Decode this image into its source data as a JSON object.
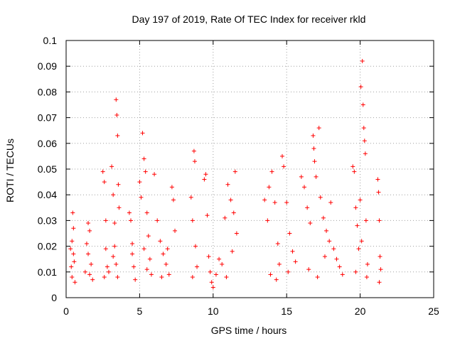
{
  "chart_data": {
    "type": "scatter",
    "title": "Day 197 of 2019, Rate Of TEC Index for receiver rkld",
    "xlabel": "GPS time / hours",
    "ylabel": "ROTI / TECUs",
    "xlim": [
      0,
      25
    ],
    "ylim": [
      0,
      0.1
    ],
    "x_ticks": [
      0,
      5,
      10,
      15,
      20,
      25
    ],
    "x_tick_labels": [
      "0",
      "5",
      "10",
      "15",
      "20",
      "25"
    ],
    "y_ticks": [
      0,
      0.01,
      0.02,
      0.03,
      0.04,
      0.05,
      0.06,
      0.07,
      0.08,
      0.09,
      0.1
    ],
    "y_tick_labels": [
      "0",
      "0.01",
      "0.02",
      "0.03",
      "0.04",
      "0.05",
      "0.06",
      "0.07",
      "0.08",
      "0.09",
      "0.1"
    ],
    "grid": true,
    "marker": "+",
    "color": "#ff0000",
    "series": [
      {
        "name": "ROTI",
        "points": [
          [
            0.3,
            0.019
          ],
          [
            0.35,
            0.012
          ],
          [
            0.4,
            0.008
          ],
          [
            0.45,
            0.033
          ],
          [
            0.5,
            0.027
          ],
          [
            0.55,
            0.014
          ],
          [
            0.6,
            0.006
          ],
          [
            0.4,
            0.022
          ],
          [
            0.5,
            0.017
          ],
          [
            1.3,
            0.01
          ],
          [
            1.4,
            0.021
          ],
          [
            1.5,
            0.029
          ],
          [
            1.6,
            0.026
          ],
          [
            1.7,
            0.013
          ],
          [
            1.8,
            0.007
          ],
          [
            1.5,
            0.017
          ],
          [
            1.6,
            0.009
          ],
          [
            2.5,
            0.049
          ],
          [
            2.6,
            0.045
          ],
          [
            2.7,
            0.03
          ],
          [
            2.8,
            0.012
          ],
          [
            2.6,
            0.008
          ],
          [
            2.7,
            0.019
          ],
          [
            2.9,
            0.01
          ],
          [
            3.1,
            0.051
          ],
          [
            3.2,
            0.04
          ],
          [
            3.3,
            0.029
          ],
          [
            3.4,
            0.077
          ],
          [
            3.45,
            0.071
          ],
          [
            3.5,
            0.063
          ],
          [
            3.55,
            0.044
          ],
          [
            3.6,
            0.035
          ],
          [
            3.3,
            0.02
          ],
          [
            3.4,
            0.013
          ],
          [
            3.5,
            0.008
          ],
          [
            3.2,
            0.016
          ],
          [
            4.3,
            0.033
          ],
          [
            4.4,
            0.03
          ],
          [
            4.5,
            0.021
          ],
          [
            4.6,
            0.012
          ],
          [
            4.7,
            0.007
          ],
          [
            4.5,
            0.017
          ],
          [
            5.0,
            0.045
          ],
          [
            5.1,
            0.039
          ],
          [
            5.2,
            0.064
          ],
          [
            5.3,
            0.054
          ],
          [
            5.4,
            0.049
          ],
          [
            5.5,
            0.033
          ],
          [
            5.6,
            0.024
          ],
          [
            5.7,
            0.015
          ],
          [
            5.8,
            0.009
          ],
          [
            5.5,
            0.011
          ],
          [
            5.3,
            0.019
          ],
          [
            6.0,
            0.048
          ],
          [
            6.2,
            0.03
          ],
          [
            6.4,
            0.022
          ],
          [
            6.6,
            0.017
          ],
          [
            6.8,
            0.013
          ],
          [
            7.0,
            0.009
          ],
          [
            7.2,
            0.043
          ],
          [
            7.3,
            0.038
          ],
          [
            7.4,
            0.026
          ],
          [
            6.5,
            0.008
          ],
          [
            6.9,
            0.019
          ],
          [
            8.5,
            0.039
          ],
          [
            8.6,
            0.03
          ],
          [
            8.7,
            0.057
          ],
          [
            8.75,
            0.053
          ],
          [
            8.8,
            0.02
          ],
          [
            8.9,
            0.012
          ],
          [
            8.6,
            0.008
          ],
          [
            9.4,
            0.046
          ],
          [
            9.5,
            0.048
          ],
          [
            9.6,
            0.032
          ],
          [
            9.7,
            0.016
          ],
          [
            9.8,
            0.01
          ],
          [
            9.9,
            0.006
          ],
          [
            10.0,
            0.004
          ],
          [
            10.2,
            0.009
          ],
          [
            10.4,
            0.015
          ],
          [
            10.6,
            0.013
          ],
          [
            10.8,
            0.031
          ],
          [
            11.0,
            0.044
          ],
          [
            11.2,
            0.038
          ],
          [
            11.5,
            0.049
          ],
          [
            11.4,
            0.033
          ],
          [
            11.6,
            0.025
          ],
          [
            11.3,
            0.018
          ],
          [
            10.9,
            0.008
          ],
          [
            13.5,
            0.038
          ],
          [
            13.7,
            0.03
          ],
          [
            13.8,
            0.043
          ],
          [
            14.0,
            0.049
          ],
          [
            14.2,
            0.037
          ],
          [
            14.4,
            0.021
          ],
          [
            14.5,
            0.013
          ],
          [
            14.7,
            0.055
          ],
          [
            14.8,
            0.051
          ],
          [
            15.0,
            0.037
          ],
          [
            15.2,
            0.025
          ],
          [
            15.4,
            0.018
          ],
          [
            15.6,
            0.014
          ],
          [
            13.9,
            0.009
          ],
          [
            14.3,
            0.007
          ],
          [
            15.1,
            0.01
          ],
          [
            16.0,
            0.047
          ],
          [
            16.2,
            0.043
          ],
          [
            16.4,
            0.035
          ],
          [
            16.6,
            0.029
          ],
          [
            16.8,
            0.063
          ],
          [
            16.85,
            0.058
          ],
          [
            16.9,
            0.053
          ],
          [
            17.0,
            0.047
          ],
          [
            17.2,
            0.066
          ],
          [
            17.3,
            0.039
          ],
          [
            17.5,
            0.031
          ],
          [
            17.7,
            0.026
          ],
          [
            17.9,
            0.022
          ],
          [
            18.0,
            0.037
          ],
          [
            18.2,
            0.019
          ],
          [
            18.4,
            0.015
          ],
          [
            18.6,
            0.012
          ],
          [
            18.8,
            0.009
          ],
          [
            16.5,
            0.011
          ],
          [
            17.1,
            0.008
          ],
          [
            17.6,
            0.016
          ],
          [
            19.5,
            0.051
          ],
          [
            19.6,
            0.049
          ],
          [
            19.7,
            0.035
          ],
          [
            19.8,
            0.028
          ],
          [
            19.9,
            0.019
          ],
          [
            20.0,
            0.038
          ],
          [
            20.05,
            0.082
          ],
          [
            20.15,
            0.092
          ],
          [
            20.2,
            0.075
          ],
          [
            20.25,
            0.066
          ],
          [
            20.3,
            0.061
          ],
          [
            20.35,
            0.056
          ],
          [
            20.4,
            0.03
          ],
          [
            20.5,
            0.013
          ],
          [
            20.45,
            0.008
          ],
          [
            19.7,
            0.01
          ],
          [
            20.1,
            0.022
          ],
          [
            21.2,
            0.046
          ],
          [
            21.25,
            0.041
          ],
          [
            21.3,
            0.03
          ],
          [
            21.35,
            0.016
          ],
          [
            21.4,
            0.011
          ],
          [
            21.3,
            0.006
          ]
        ]
      }
    ]
  }
}
